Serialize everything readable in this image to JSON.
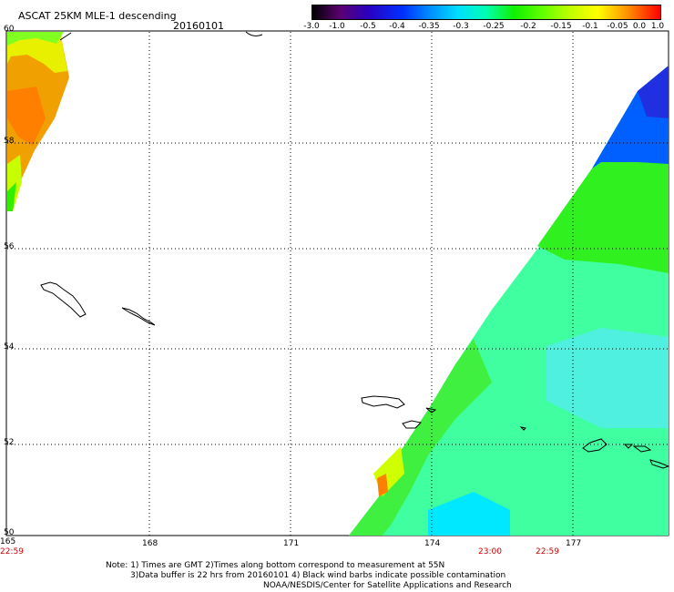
{
  "title": "ASCAT 25KM MLE-1 descending",
  "date": "20160101",
  "colorbar": {
    "labels": [
      "-3.0",
      "-1.0",
      "-0.5",
      "-0.4",
      "-0.35",
      "-0.3",
      "-0.25",
      "-0.2",
      "-0.15",
      "-0.1",
      "-0.05",
      "0.0",
      "1.0"
    ],
    "colors": [
      "#000000",
      "#5a0070",
      "#2a00c0",
      "#0030ff",
      "#0090ff",
      "#00e0ff",
      "#00ffb0",
      "#10f000",
      "#60ff00",
      "#c0ff00",
      "#ffff00",
      "#ff9900",
      "#ff0000"
    ]
  },
  "map": {
    "lat_labels": [
      "60",
      "58",
      "56",
      "54",
      "52",
      "50"
    ],
    "lon_labels": [
      "165",
      "168",
      "171",
      "174",
      "177"
    ],
    "time_labels": [
      "22:59",
      "23:00",
      "22:59"
    ]
  },
  "notes": {
    "line1": "Note: 1) Times are GMT 2)Times along bottom correspond to measurement at 55N",
    "line2": "3)Data buffer is 22 hrs from 20160101 4) Black wind barbs indicate possible contamination",
    "line3": "NOAA/NESDIS/Center for Satellite Applications and Research"
  }
}
